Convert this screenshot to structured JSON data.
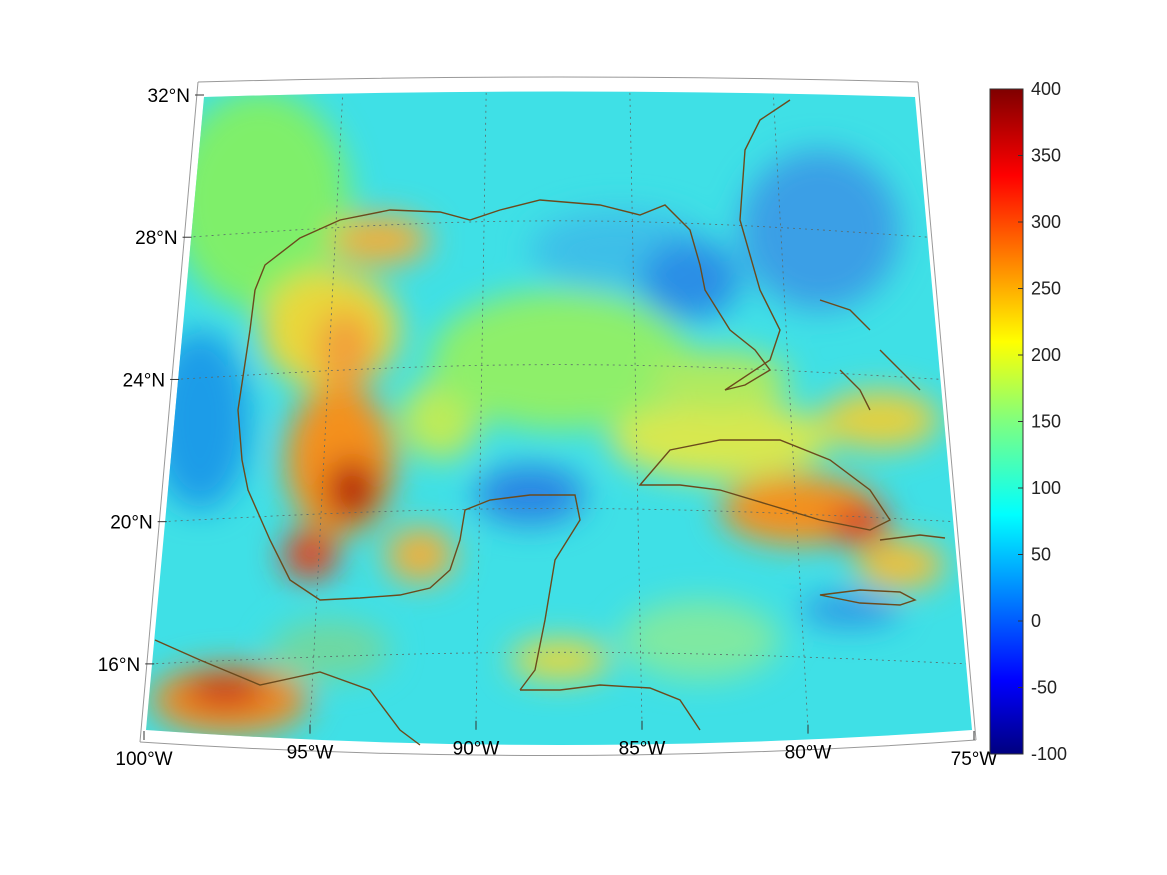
{
  "map": {
    "lon_range": [
      -100,
      -75
    ],
    "lat_range": [
      14,
      32
    ],
    "projection": "conic",
    "grid": true,
    "coastline_color": "#6b4a1c"
  },
  "lat_labels": [
    {
      "lat": 32,
      "text": "32°N"
    },
    {
      "lat": 28,
      "text": "28°N"
    },
    {
      "lat": 24,
      "text": "24°N"
    },
    {
      "lat": 20,
      "text": "20°N"
    },
    {
      "lat": 16,
      "text": "16°N"
    }
  ],
  "lon_labels": [
    {
      "lon": -100,
      "text": "100°W"
    },
    {
      "lon": -95,
      "text": "95°W"
    },
    {
      "lon": -90,
      "text": "90°W"
    },
    {
      "lon": -85,
      "text": "85°W"
    },
    {
      "lon": -80,
      "text": "80°W"
    },
    {
      "lon": -75,
      "text": "75°W"
    }
  ],
  "colorbar": {
    "min": -100,
    "max": 400,
    "colormap": "jet",
    "ticks": [
      "400",
      "350",
      "300",
      "250",
      "200",
      "150",
      "100",
      "50",
      "0",
      "-50",
      "-100"
    ]
  }
}
